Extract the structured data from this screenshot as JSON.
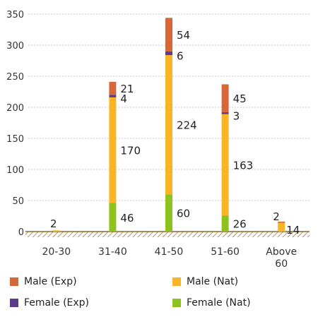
{
  "chart_data": {
    "type": "bar",
    "stacked": true,
    "categories": [
      "20-30",
      "31-40",
      "41-50",
      "51-60",
      "Above 60"
    ],
    "series": [
      {
        "name": "Female (Nat)",
        "color": "#8DC21F",
        "values": [
          0,
          46,
          60,
          26,
          0
        ]
      },
      {
        "name": "Male (Nat)",
        "color": "#F8B526",
        "values": [
          2,
          170,
          224,
          163,
          14
        ]
      },
      {
        "name": "Female (Exp)",
        "color": "#5B3B8C",
        "values": [
          0,
          4,
          6,
          3,
          0
        ]
      },
      {
        "name": "Male (Exp)",
        "color": "#D4683A",
        "values": [
          0,
          21,
          54,
          45,
          2
        ]
      }
    ],
    "data_labels": [
      [
        "",
        "2",
        "",
        ""
      ],
      [
        "46",
        "170",
        "4",
        "21"
      ],
      [
        "60",
        "224",
        "6",
        "54"
      ],
      [
        "26",
        "163",
        "3",
        "45"
      ],
      [
        "",
        "14",
        "",
        "2"
      ]
    ],
    "ylim": [
      0,
      350
    ],
    "yticks": [
      0,
      50,
      100,
      150,
      200,
      250,
      300,
      350
    ],
    "grid": true,
    "legend_position": "bottom",
    "legend_order": [
      "Male (Exp)",
      "Male (Nat)",
      "Female (Exp)",
      "Female (Nat)"
    ],
    "title": "",
    "xlabel": "",
    "ylabel": ""
  }
}
